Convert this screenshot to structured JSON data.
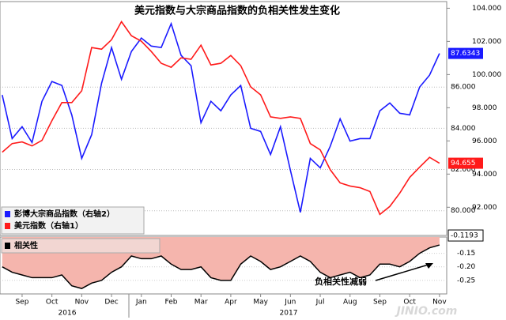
{
  "chart_data": {
    "type": "line",
    "title": "美元指数与大宗商品指数的负相关性发生变化",
    "categories": [
      null,
      null,
      "Sep",
      null,
      null,
      "Oct",
      null,
      null,
      "Nov",
      null,
      null,
      "Dec",
      null,
      null,
      "Jan",
      null,
      null,
      "Feb",
      null,
      null,
      "Mar",
      null,
      null,
      "Apr",
      null,
      null,
      "May",
      null,
      null,
      "Jun",
      null,
      null,
      "Jul",
      null,
      null,
      "Aug",
      null,
      null,
      "Sep",
      null,
      null,
      "Oct",
      null,
      null,
      "Nov"
    ],
    "x_group_labels": [
      "2016",
      "2017"
    ],
    "series": [
      {
        "name": "彭博大宗商品指数（右轴2）",
        "color": "#1a1aff",
        "axis": "y2",
        "values": [
          85.62,
          83.5,
          84.08,
          83.31,
          85.31,
          86.27,
          86.08,
          84.65,
          82.54,
          83.69,
          86.19,
          87.92,
          86.38,
          87.73,
          88.38,
          87.99,
          87.92,
          89.08,
          87.54,
          87.04,
          84.27,
          85.31,
          84.85,
          85.62,
          86.08,
          84.0,
          83.85,
          82.73,
          84.08,
          81.96,
          79.92,
          82.54,
          82.08,
          83.12,
          84.46,
          83.38,
          83.5,
          83.5,
          84.85,
          85.23,
          84.73,
          84.65,
          86.0,
          86.58,
          87.6343
        ]
      },
      {
        "name": "美元指数（右轴1）",
        "color": "#ff1a1a",
        "axis": "y",
        "values": [
          95.32,
          95.84,
          95.94,
          95.7,
          96.03,
          97.22,
          98.31,
          98.31,
          99.02,
          101.63,
          101.53,
          102.1,
          103.19,
          102.34,
          102.01,
          101.39,
          100.68,
          100.44,
          101.01,
          100.92,
          101.77,
          100.58,
          100.68,
          101.15,
          100.54,
          99.26,
          98.78,
          97.45,
          97.36,
          97.45,
          97.36,
          95.84,
          95.46,
          94.27,
          93.47,
          93.28,
          93.18,
          92.95,
          91.57,
          92.05,
          92.85,
          93.8,
          94.42,
          95.01,
          94.655
        ]
      }
    ],
    "ylim": [
      90.3,
      104.4
    ],
    "yticks": [
      {
        "value": 92,
        "label": "92.000"
      },
      {
        "value": 94,
        "label": "94.000"
      },
      {
        "value": 96,
        "label": "96.000"
      },
      {
        "value": 98,
        "label": "98.000"
      },
      {
        "value": 100,
        "label": "100.000"
      },
      {
        "value": 102,
        "label": "102.000"
      },
      {
        "value": 104,
        "label": "104.000"
      }
    ],
    "y2lim": [
      78.8,
      90.15
    ],
    "y2ticks": [
      {
        "value": 80,
        "label": "80.000"
      },
      {
        "value": 82,
        "label": "82.000"
      },
      {
        "value": 84,
        "label": "84.000"
      },
      {
        "value": 86,
        "label": "86.000"
      }
    ],
    "grid": true,
    "legend": "lower-left",
    "watermark": "JINIO.com",
    "lower_panel": {
      "type": "area",
      "series": [
        {
          "name": "相关性",
          "color": "#000000",
          "fill": "#f5b5ad",
          "values": [
            -0.2,
            -0.22,
            -0.23,
            -0.24,
            -0.24,
            -0.24,
            -0.23,
            -0.27,
            -0.28,
            -0.26,
            -0.25,
            -0.22,
            -0.2,
            -0.16,
            -0.17,
            -0.17,
            -0.16,
            -0.19,
            -0.21,
            -0.21,
            -0.2,
            -0.24,
            -0.25,
            -0.25,
            -0.19,
            -0.16,
            -0.18,
            -0.21,
            -0.2,
            -0.18,
            -0.16,
            -0.18,
            -0.22,
            -0.24,
            -0.23,
            -0.22,
            -0.24,
            -0.23,
            -0.19,
            -0.19,
            -0.2,
            -0.18,
            -0.15,
            -0.13,
            -0.1193
          ]
        }
      ],
      "ylim": [
        -0.3,
        -0.09
      ],
      "yticks": [
        -0.15,
        {
          "value": -0.2,
          "label": "-0.20"
        },
        -0.25
      ],
      "annotation": "负相关性减弱"
    }
  }
}
